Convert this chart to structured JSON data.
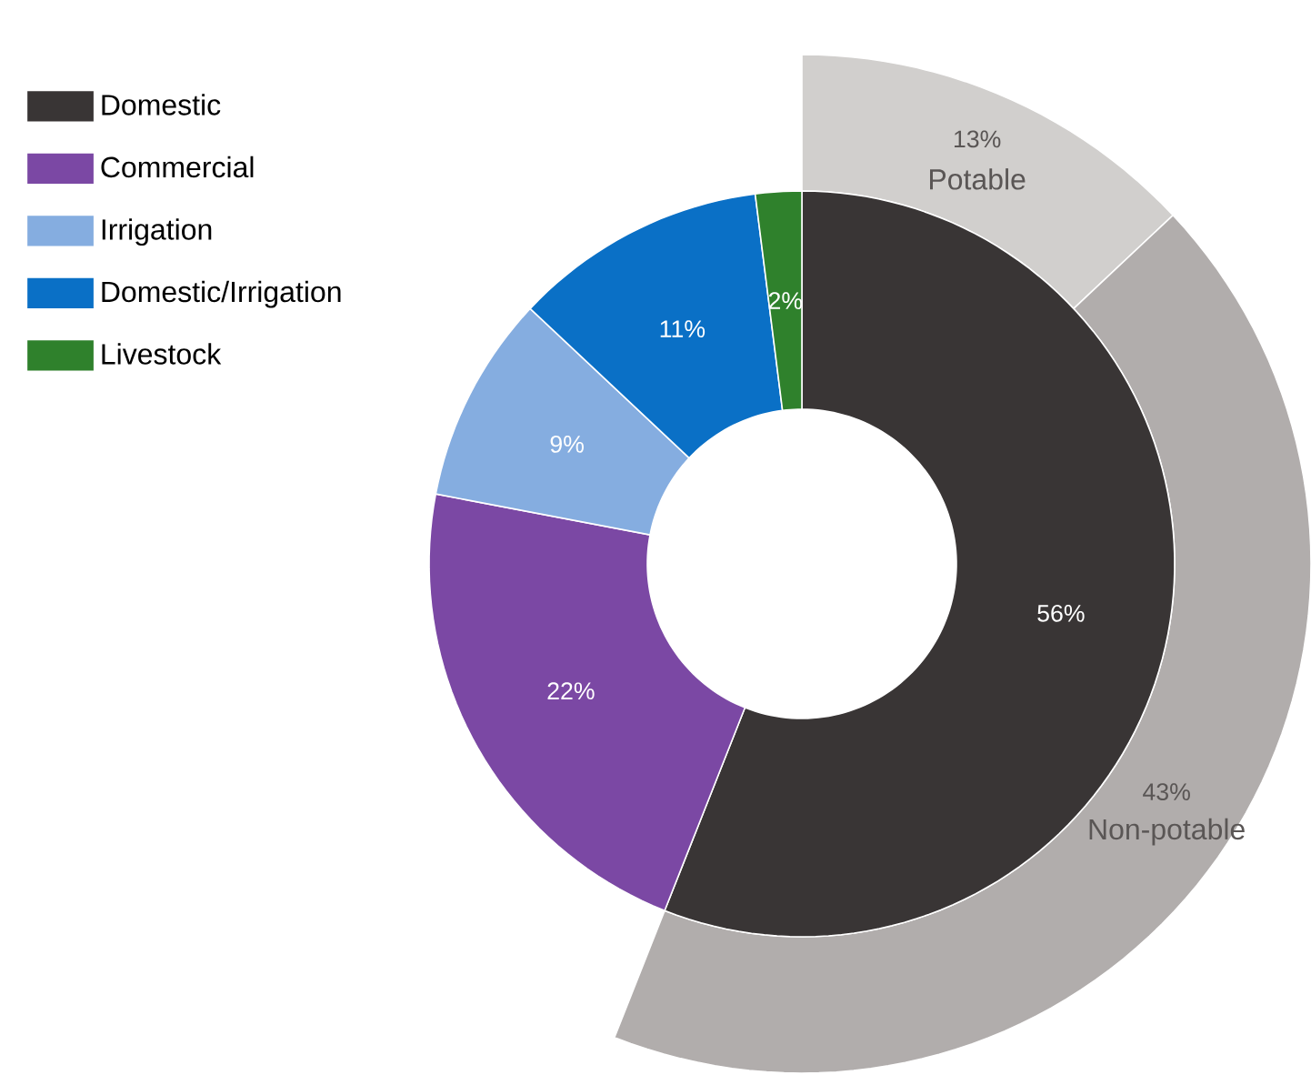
{
  "chart_data": [
    {
      "type": "donut",
      "categories": [
        "Domestic",
        "Commercial",
        "Irrigation",
        "Domestic/Irrigation",
        "Livestock"
      ],
      "values": [
        56,
        22,
        9,
        11,
        2
      ],
      "colors": [
        "#393535",
        "#7b48a4",
        "#85ade0",
        "#0a70c6",
        "#2f812c"
      ],
      "value_labels": [
        "56%",
        "22%",
        "9%",
        "11%",
        "2%"
      ],
      "legend": "left"
    },
    {
      "type": "donut",
      "categories": [
        "Potable",
        "Non-potable"
      ],
      "values": [
        13,
        43
      ],
      "colors": [
        "#d1cfcd",
        "#b1adac"
      ],
      "value_labels": [
        "13%",
        "43%"
      ]
    }
  ]
}
